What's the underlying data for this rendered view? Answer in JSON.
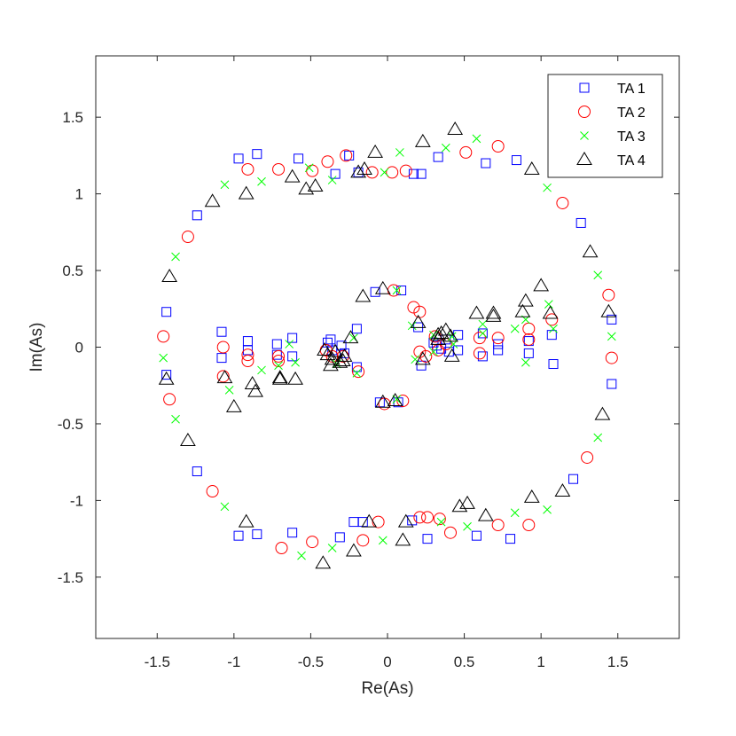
{
  "chart_data": {
    "type": "scatter",
    "title": "",
    "xlabel": "Re(As)",
    "ylabel": "Im(As)",
    "xlim": [
      -1.9,
      1.9
    ],
    "ylim": [
      -1.9,
      1.9
    ],
    "xticks": [
      -1.5,
      -1,
      -0.5,
      0,
      0.5,
      1,
      1.5
    ],
    "yticks": [
      -1.5,
      -1,
      -0.5,
      0,
      0.5,
      1,
      1.5
    ],
    "xtick_labels": [
      "-1.5",
      "-1",
      "-0.5",
      "0",
      "0.5",
      "1",
      "1.5"
    ],
    "ytick_labels": [
      "-1.5",
      "-1",
      "-0.5",
      "0",
      "0.5",
      "1",
      "1.5"
    ],
    "grid": false,
    "legend_position": "top-right",
    "series": [
      {
        "name": "TA 1",
        "marker": "square",
        "color": "#0000ff",
        "points": [
          [
            -1.44,
            0.23
          ],
          [
            -1.44,
            -0.18
          ],
          [
            -1.24,
            0.86
          ],
          [
            -1.24,
            -0.81
          ],
          [
            -1.08,
            0.1
          ],
          [
            -1.08,
            -0.07
          ],
          [
            -0.97,
            1.23
          ],
          [
            -0.97,
            -1.23
          ],
          [
            -0.85,
            1.26
          ],
          [
            -0.85,
            -1.22
          ],
          [
            -0.91,
            0.04
          ],
          [
            -0.91,
            -0.02
          ],
          [
            -0.72,
            0.02
          ],
          [
            -0.72,
            -0.05
          ],
          [
            -0.62,
            0.06
          ],
          [
            -0.62,
            -0.06
          ],
          [
            -0.58,
            1.23
          ],
          [
            -0.62,
            -1.21
          ],
          [
            -0.39,
            0.03
          ],
          [
            -0.37,
            0.05
          ],
          [
            -0.36,
            -0.02
          ],
          [
            -0.3,
            0.01
          ],
          [
            -0.28,
            -0.04
          ],
          [
            -0.34,
            1.13
          ],
          [
            -0.31,
            -1.24
          ],
          [
            -0.25,
            1.25
          ],
          [
            -0.22,
            -1.14
          ],
          [
            -0.2,
            0.12
          ],
          [
            -0.2,
            -0.13
          ],
          [
            -0.19,
            1.14
          ],
          [
            -0.16,
            -1.14
          ],
          [
            -0.08,
            0.36
          ],
          [
            -0.05,
            -0.36
          ],
          [
            0.09,
            0.37
          ],
          [
            0.07,
            -0.36
          ],
          [
            0.17,
            1.13
          ],
          [
            0.22,
            1.13
          ],
          [
            0.16,
            -1.13
          ],
          [
            0.26,
            -1.25
          ],
          [
            0.2,
            0.13
          ],
          [
            0.22,
            -0.12
          ],
          [
            0.33,
            1.24
          ],
          [
            0.3,
            0.03
          ],
          [
            0.32,
            0.01
          ],
          [
            0.35,
            -0.01
          ],
          [
            0.38,
            0.05
          ],
          [
            0.4,
            -0.03
          ],
          [
            0.46,
            0.08
          ],
          [
            0.46,
            -0.02
          ],
          [
            0.62,
            0.09
          ],
          [
            0.62,
            -0.06
          ],
          [
            0.64,
            1.2
          ],
          [
            0.58,
            -1.23
          ],
          [
            0.72,
            0.02
          ],
          [
            0.72,
            -0.02
          ],
          [
            0.84,
            1.22
          ],
          [
            0.8,
            -1.25
          ],
          [
            0.92,
            0.04
          ],
          [
            0.92,
            -0.04
          ],
          [
            1.07,
            0.08
          ],
          [
            1.08,
            -0.11
          ],
          [
            1.26,
            0.81
          ],
          [
            1.21,
            -0.86
          ],
          [
            1.46,
            0.18
          ],
          [
            1.46,
            -0.24
          ]
        ]
      },
      {
        "name": "TA 2",
        "marker": "circle",
        "color": "#ff0000",
        "points": [
          [
            -1.46,
            0.07
          ],
          [
            -1.42,
            -0.34
          ],
          [
            -1.3,
            0.72
          ],
          [
            -1.14,
            -0.94
          ],
          [
            -1.07,
            0.0
          ],
          [
            -1.07,
            -0.19
          ],
          [
            -0.91,
            1.16
          ],
          [
            -0.91,
            -0.05
          ],
          [
            -0.91,
            -0.09
          ],
          [
            -0.71,
            -0.06
          ],
          [
            -0.71,
            -0.09
          ],
          [
            -0.71,
            1.16
          ],
          [
            -0.69,
            -1.31
          ],
          [
            -0.49,
            1.15
          ],
          [
            -0.49,
            -1.27
          ],
          [
            -0.39,
            1.21
          ],
          [
            -0.4,
            -0.02
          ],
          [
            -0.36,
            -0.06
          ],
          [
            -0.29,
            -0.06
          ],
          [
            -0.27,
            1.25
          ],
          [
            -0.16,
            -1.26
          ],
          [
            -0.19,
            -0.16
          ],
          [
            -0.1,
            1.14
          ],
          [
            -0.06,
            -1.14
          ],
          [
            -0.02,
            -0.37
          ],
          [
            0.04,
            0.37
          ],
          [
            0.1,
            -0.35
          ],
          [
            0.03,
            1.14
          ],
          [
            0.12,
            1.15
          ],
          [
            0.21,
            -1.11
          ],
          [
            0.26,
            -1.11
          ],
          [
            0.17,
            0.26
          ],
          [
            0.21,
            0.23
          ],
          [
            0.21,
            -0.03
          ],
          [
            0.25,
            -0.06
          ],
          [
            0.31,
            0.07
          ],
          [
            0.33,
            -0.02
          ],
          [
            0.34,
            -1.12
          ],
          [
            0.38,
            0.02
          ],
          [
            0.41,
            -1.21
          ],
          [
            0.51,
            1.27
          ],
          [
            0.6,
            0.06
          ],
          [
            0.6,
            -0.04
          ],
          [
            0.72,
            0.06
          ],
          [
            0.72,
            1.31
          ],
          [
            0.72,
            -1.16
          ],
          [
            0.92,
            0.05
          ],
          [
            0.92,
            0.12
          ],
          [
            0.92,
            -1.16
          ],
          [
            1.07,
            0.18
          ],
          [
            1.14,
            0.94
          ],
          [
            1.3,
            -0.72
          ],
          [
            1.44,
            0.34
          ],
          [
            1.46,
            -0.07
          ]
        ]
      },
      {
        "name": "TA 3",
        "marker": "x",
        "color": "#00ff00",
        "points": [
          [
            -1.46,
            -0.07
          ],
          [
            -1.38,
            0.59
          ],
          [
            -1.38,
            -0.47
          ],
          [
            -1.06,
            1.06
          ],
          [
            -1.06,
            -1.04
          ],
          [
            -1.03,
            -0.28
          ],
          [
            -0.82,
            1.08
          ],
          [
            -0.82,
            -0.15
          ],
          [
            -0.71,
            -0.12
          ],
          [
            -0.64,
            0.02
          ],
          [
            -0.6,
            -0.1
          ],
          [
            -0.56,
            -1.36
          ],
          [
            -0.51,
            1.17
          ],
          [
            -0.36,
            1.09
          ],
          [
            -0.36,
            -1.31
          ],
          [
            -0.33,
            -0.11
          ],
          [
            -0.22,
            0.06
          ],
          [
            -0.2,
            -0.17
          ],
          [
            -0.03,
            -1.26
          ],
          [
            -0.02,
            1.14
          ],
          [
            0.06,
            0.37
          ],
          [
            0.06,
            -0.34
          ],
          [
            0.08,
            1.27
          ],
          [
            0.16,
            0.14
          ],
          [
            0.18,
            -0.08
          ],
          [
            0.38,
            1.3
          ],
          [
            0.35,
            -1.14
          ],
          [
            0.3,
            0.08
          ],
          [
            0.3,
            -0.03
          ],
          [
            0.42,
            0.07
          ],
          [
            0.43,
            0.02
          ],
          [
            0.52,
            -1.17
          ],
          [
            0.58,
            1.36
          ],
          [
            0.62,
            0.15
          ],
          [
            0.62,
            0.09
          ],
          [
            0.83,
            0.12
          ],
          [
            0.83,
            -1.08
          ],
          [
            0.9,
            0.18
          ],
          [
            0.9,
            -0.1
          ],
          [
            1.04,
            1.04
          ],
          [
            1.04,
            -1.06
          ],
          [
            1.05,
            0.28
          ],
          [
            1.08,
            0.12
          ],
          [
            1.37,
            0.47
          ],
          [
            1.37,
            -0.59
          ],
          [
            1.46,
            0.07
          ]
        ]
      },
      {
        "name": "TA 4",
        "marker": "triangle",
        "color": "#000000",
        "points": [
          [
            -1.42,
            0.46
          ],
          [
            -1.44,
            -0.21
          ],
          [
            -1.3,
            -0.61
          ],
          [
            -1.14,
            0.95
          ],
          [
            -1.06,
            -0.2
          ],
          [
            -1.0,
            -0.39
          ],
          [
            -0.92,
            1.0
          ],
          [
            -0.92,
            -1.14
          ],
          [
            -0.88,
            -0.24
          ],
          [
            -0.86,
            -0.29
          ],
          [
            -0.7,
            -0.2
          ],
          [
            -0.7,
            -0.21
          ],
          [
            -0.62,
            1.11
          ],
          [
            -0.6,
            -0.21
          ],
          [
            -0.53,
            1.03
          ],
          [
            -0.47,
            1.05
          ],
          [
            -0.42,
            -1.41
          ],
          [
            -0.41,
            -0.02
          ],
          [
            -0.39,
            -0.05
          ],
          [
            -0.37,
            -0.12
          ],
          [
            -0.36,
            -0.08
          ],
          [
            -0.34,
            -0.03
          ],
          [
            -0.31,
            -0.1
          ],
          [
            -0.29,
            -0.09
          ],
          [
            -0.28,
            -0.06
          ],
          [
            -0.24,
            0.06
          ],
          [
            -0.22,
            -1.33
          ],
          [
            -0.19,
            1.14
          ],
          [
            -0.16,
            0.33
          ],
          [
            -0.15,
            1.16
          ],
          [
            -0.12,
            -1.14
          ],
          [
            -0.08,
            1.27
          ],
          [
            -0.03,
            0.38
          ],
          [
            -0.03,
            -0.36
          ],
          [
            0.05,
            -0.35
          ],
          [
            0.1,
            -1.26
          ],
          [
            0.12,
            -1.14
          ],
          [
            0.23,
            1.34
          ],
          [
            0.2,
            0.16
          ],
          [
            0.23,
            -0.08
          ],
          [
            0.33,
            0.08
          ],
          [
            0.33,
            0.05
          ],
          [
            0.35,
            0.09
          ],
          [
            0.38,
            0.11
          ],
          [
            0.41,
            0.07
          ],
          [
            0.42,
            -0.06
          ],
          [
            0.44,
            1.42
          ],
          [
            0.47,
            -1.04
          ],
          [
            0.52,
            -1.02
          ],
          [
            0.58,
            0.22
          ],
          [
            0.64,
            -1.1
          ],
          [
            0.69,
            0.22
          ],
          [
            0.69,
            0.2
          ],
          [
            0.9,
            0.3
          ],
          [
            0.88,
            0.23
          ],
          [
            0.94,
            1.16
          ],
          [
            0.94,
            -0.98
          ],
          [
            1.0,
            0.4
          ],
          [
            1.06,
            0.22
          ],
          [
            1.14,
            -0.94
          ],
          [
            1.32,
            0.62
          ],
          [
            1.4,
            -0.44
          ],
          [
            1.44,
            0.23
          ]
        ]
      }
    ]
  }
}
